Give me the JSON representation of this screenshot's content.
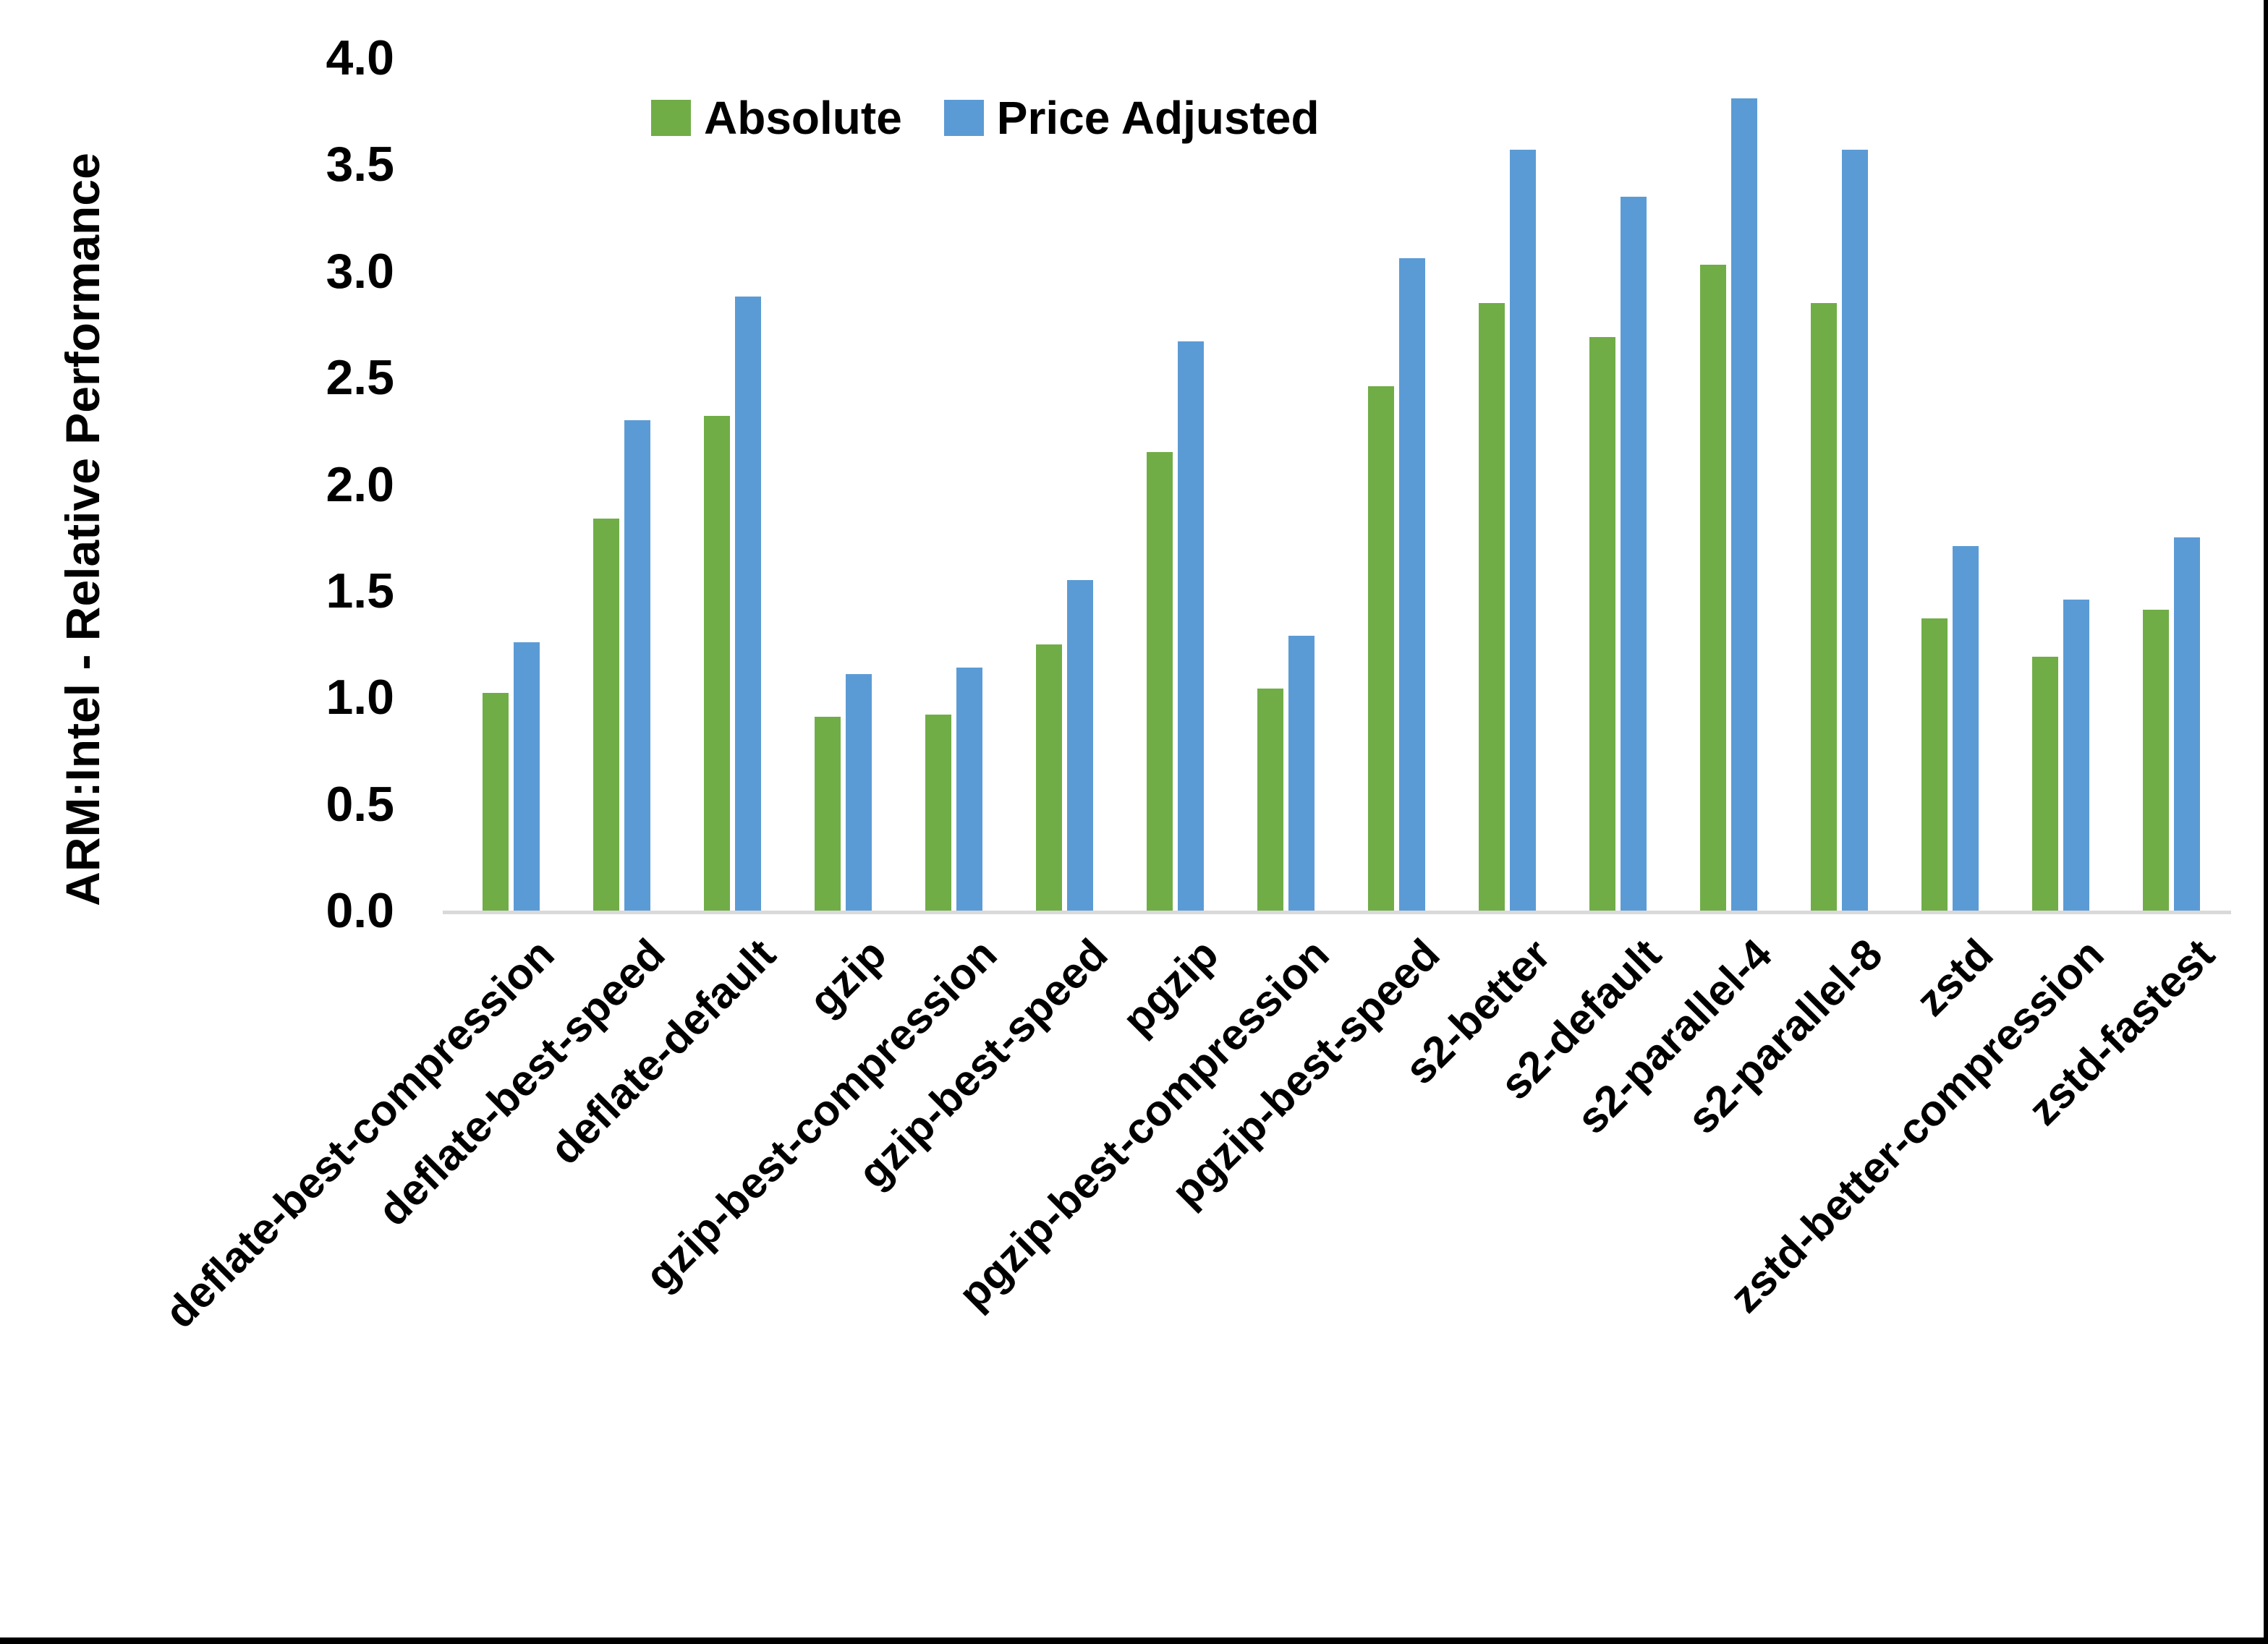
{
  "colors": {
    "absolute": "#70AD47",
    "price_adjusted": "#5B9BD5",
    "axis_line": "#D9D9D9",
    "text": "#000000",
    "frame": "#000000",
    "background": "#FFFFFF"
  },
  "chart_data": {
    "type": "bar",
    "title": "",
    "xlabel": "",
    "ylabel": "ARM:Intel - Relative Performance",
    "ylim": [
      0.0,
      4.0
    ],
    "ytick_step": 0.5,
    "ytick_labels": [
      "0.0",
      "0.5",
      "1.0",
      "1.5",
      "2.0",
      "2.5",
      "3.0",
      "3.5",
      "4.0"
    ],
    "grid": false,
    "legend_position": "top-center",
    "categories": [
      "deflate-best-compression",
      "deflate-best-speed",
      "deflate-default",
      "gzip",
      "gzip-best-compression",
      "gzip-best-speed",
      "pgzip",
      "pgzip-best-compression",
      "pgzip-best-speed",
      "s2-better",
      "s2-default",
      "s2-parallel-4",
      "s2-parallel-8",
      "zstd",
      "zstd-better-compression",
      "zstd-fastest"
    ],
    "series": [
      {
        "name": "Absolute",
        "color": "#70AD47",
        "values": [
          1.02,
          1.84,
          2.32,
          0.91,
          0.92,
          1.25,
          2.15,
          1.04,
          2.46,
          2.85,
          2.69,
          3.03,
          2.85,
          1.37,
          1.19,
          1.41
        ]
      },
      {
        "name": "Price Adjusted",
        "color": "#5B9BD5",
        "values": [
          1.26,
          2.3,
          2.88,
          1.11,
          1.14,
          1.55,
          2.67,
          1.29,
          3.06,
          3.57,
          3.35,
          3.81,
          3.57,
          1.71,
          1.46,
          1.75
        ]
      }
    ]
  }
}
